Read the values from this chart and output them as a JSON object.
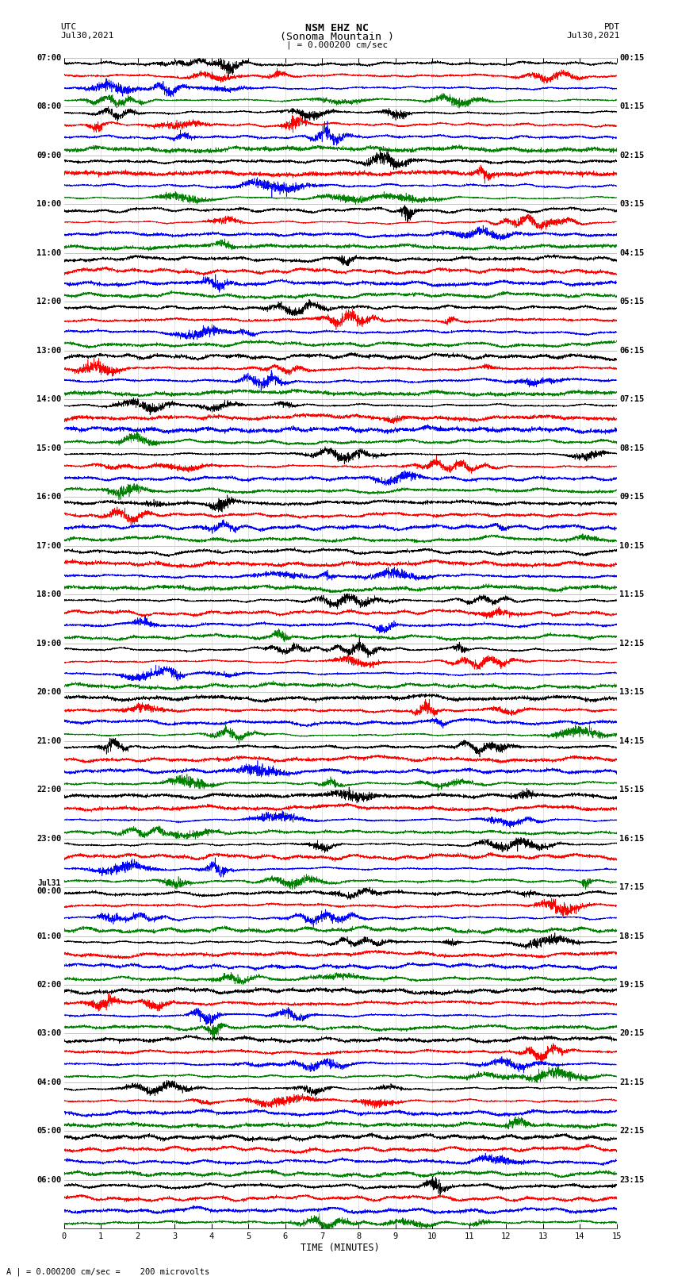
{
  "title_line1": "NSM EHZ NC",
  "title_line2": "(Sonoma Mountain )",
  "title_line3": "| = 0.000200 cm/sec",
  "left_top_label": "UTC",
  "left_date": "Jul30,2021",
  "right_top_label": "PDT",
  "right_date": "Jul30,2021",
  "xlabel": "TIME (MINUTES)",
  "footer": "A | = 0.000200 cm/sec =    200 microvolts",
  "xlim": [
    0,
    15
  ],
  "xticks": [
    0,
    1,
    2,
    3,
    4,
    5,
    6,
    7,
    8,
    9,
    10,
    11,
    12,
    13,
    14,
    15
  ],
  "colors": [
    "black",
    "red",
    "blue",
    "green"
  ],
  "left_times": [
    "07:00",
    "08:00",
    "09:00",
    "10:00",
    "11:00",
    "12:00",
    "13:00",
    "14:00",
    "15:00",
    "16:00",
    "17:00",
    "18:00",
    "19:00",
    "20:00",
    "21:00",
    "22:00",
    "23:00",
    "Jul31\n00:00",
    "01:00",
    "02:00",
    "03:00",
    "04:00",
    "05:00",
    "06:00"
  ],
  "right_times": [
    "00:15",
    "01:15",
    "02:15",
    "03:15",
    "04:15",
    "05:15",
    "06:15",
    "07:15",
    "08:15",
    "09:15",
    "10:15",
    "11:15",
    "12:15",
    "13:15",
    "14:15",
    "15:15",
    "16:15",
    "17:15",
    "18:15",
    "19:15",
    "20:15",
    "21:15",
    "22:15",
    "23:15"
  ],
  "n_hours": 24,
  "traces_per_hour": 4,
  "bg_color": "white",
  "seed": 42,
  "grid_color": "#aaaaaa",
  "vline_color": "#cccccc"
}
